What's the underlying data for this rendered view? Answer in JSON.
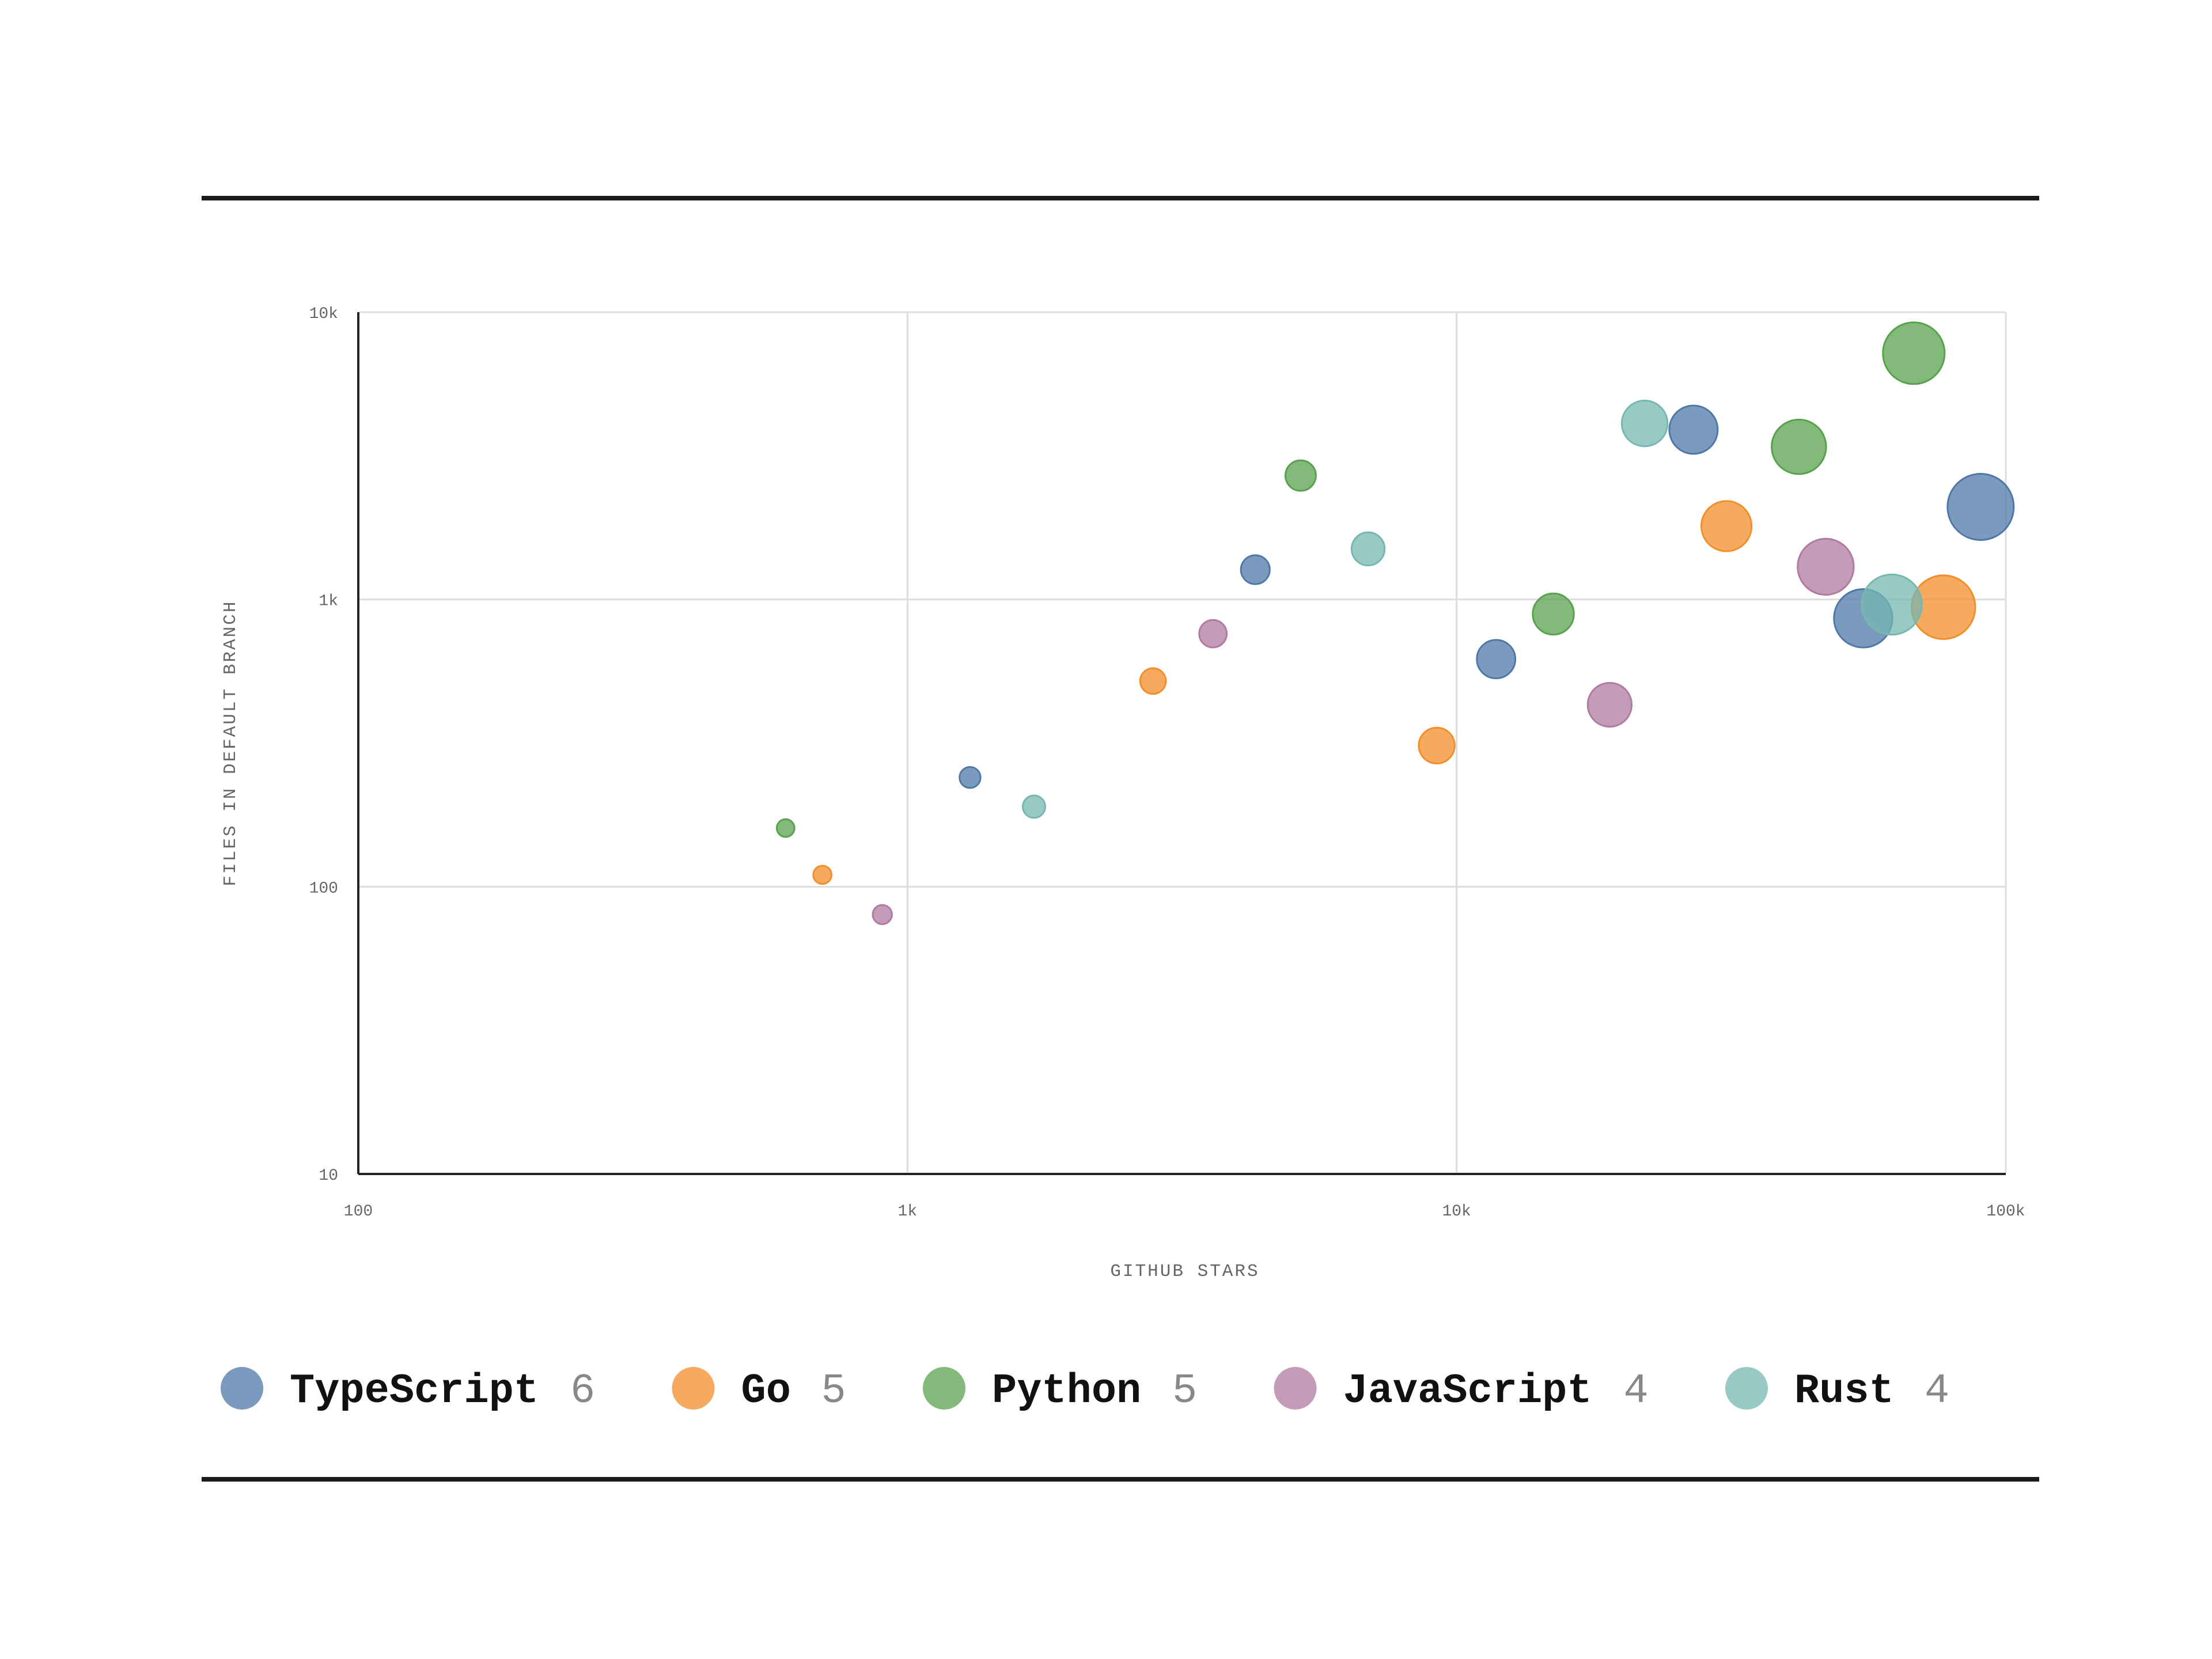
{
  "chart_data": {
    "type": "scatter",
    "xlabel": "GITHUB STARS",
    "ylabel": "FILES IN DEFAULT BRANCH",
    "x_scale": "log",
    "y_scale": "log",
    "xlim": [
      100,
      100000
    ],
    "ylim": [
      10,
      10000
    ],
    "x_ticks": [
      {
        "value": 100,
        "label": "100"
      },
      {
        "value": 1000,
        "label": "1k"
      },
      {
        "value": 10000,
        "label": "10k"
      },
      {
        "value": 100000,
        "label": "100k"
      }
    ],
    "y_ticks": [
      {
        "value": 10,
        "label": "10"
      },
      {
        "value": 100,
        "label": "100"
      },
      {
        "value": 1000,
        "label": "1k"
      },
      {
        "value": 10000,
        "label": "10k"
      }
    ],
    "grid": true,
    "legend_position": "bottom",
    "series": [
      {
        "name": "TypeScript",
        "count": "6",
        "color": "#4e79a7",
        "points": [
          {
            "x": 1300,
            "y": 240
          },
          {
            "x": 4300,
            "y": 1270
          },
          {
            "x": 11800,
            "y": 620
          },
          {
            "x": 27000,
            "y": 3900
          },
          {
            "x": 55000,
            "y": 860
          },
          {
            "x": 90000,
            "y": 2100
          }
        ]
      },
      {
        "name": "Go",
        "count": "5",
        "color": "#f28e2b",
        "points": [
          {
            "x": 700,
            "y": 110
          },
          {
            "x": 2800,
            "y": 520
          },
          {
            "x": 9200,
            "y": 310
          },
          {
            "x": 31000,
            "y": 1800
          },
          {
            "x": 77000,
            "y": 940
          }
        ]
      },
      {
        "name": "Python",
        "count": "5",
        "color": "#59a14f",
        "points": [
          {
            "x": 600,
            "y": 160
          },
          {
            "x": 5200,
            "y": 2700
          },
          {
            "x": 15000,
            "y": 890
          },
          {
            "x": 42000,
            "y": 3400
          },
          {
            "x": 68000,
            "y": 7200
          }
        ]
      },
      {
        "name": "JavaScript",
        "count": "4",
        "color": "#b07aa1",
        "points": [
          {
            "x": 900,
            "y": 80
          },
          {
            "x": 3600,
            "y": 760
          },
          {
            "x": 19000,
            "y": 430
          },
          {
            "x": 47000,
            "y": 1300
          }
        ]
      },
      {
        "name": "Rust",
        "count": "4",
        "color": "#76b7b2",
        "points": [
          {
            "x": 1700,
            "y": 190
          },
          {
            "x": 6900,
            "y": 1500
          },
          {
            "x": 22000,
            "y": 4100
          },
          {
            "x": 62000,
            "y": 960
          }
        ]
      }
    ]
  }
}
